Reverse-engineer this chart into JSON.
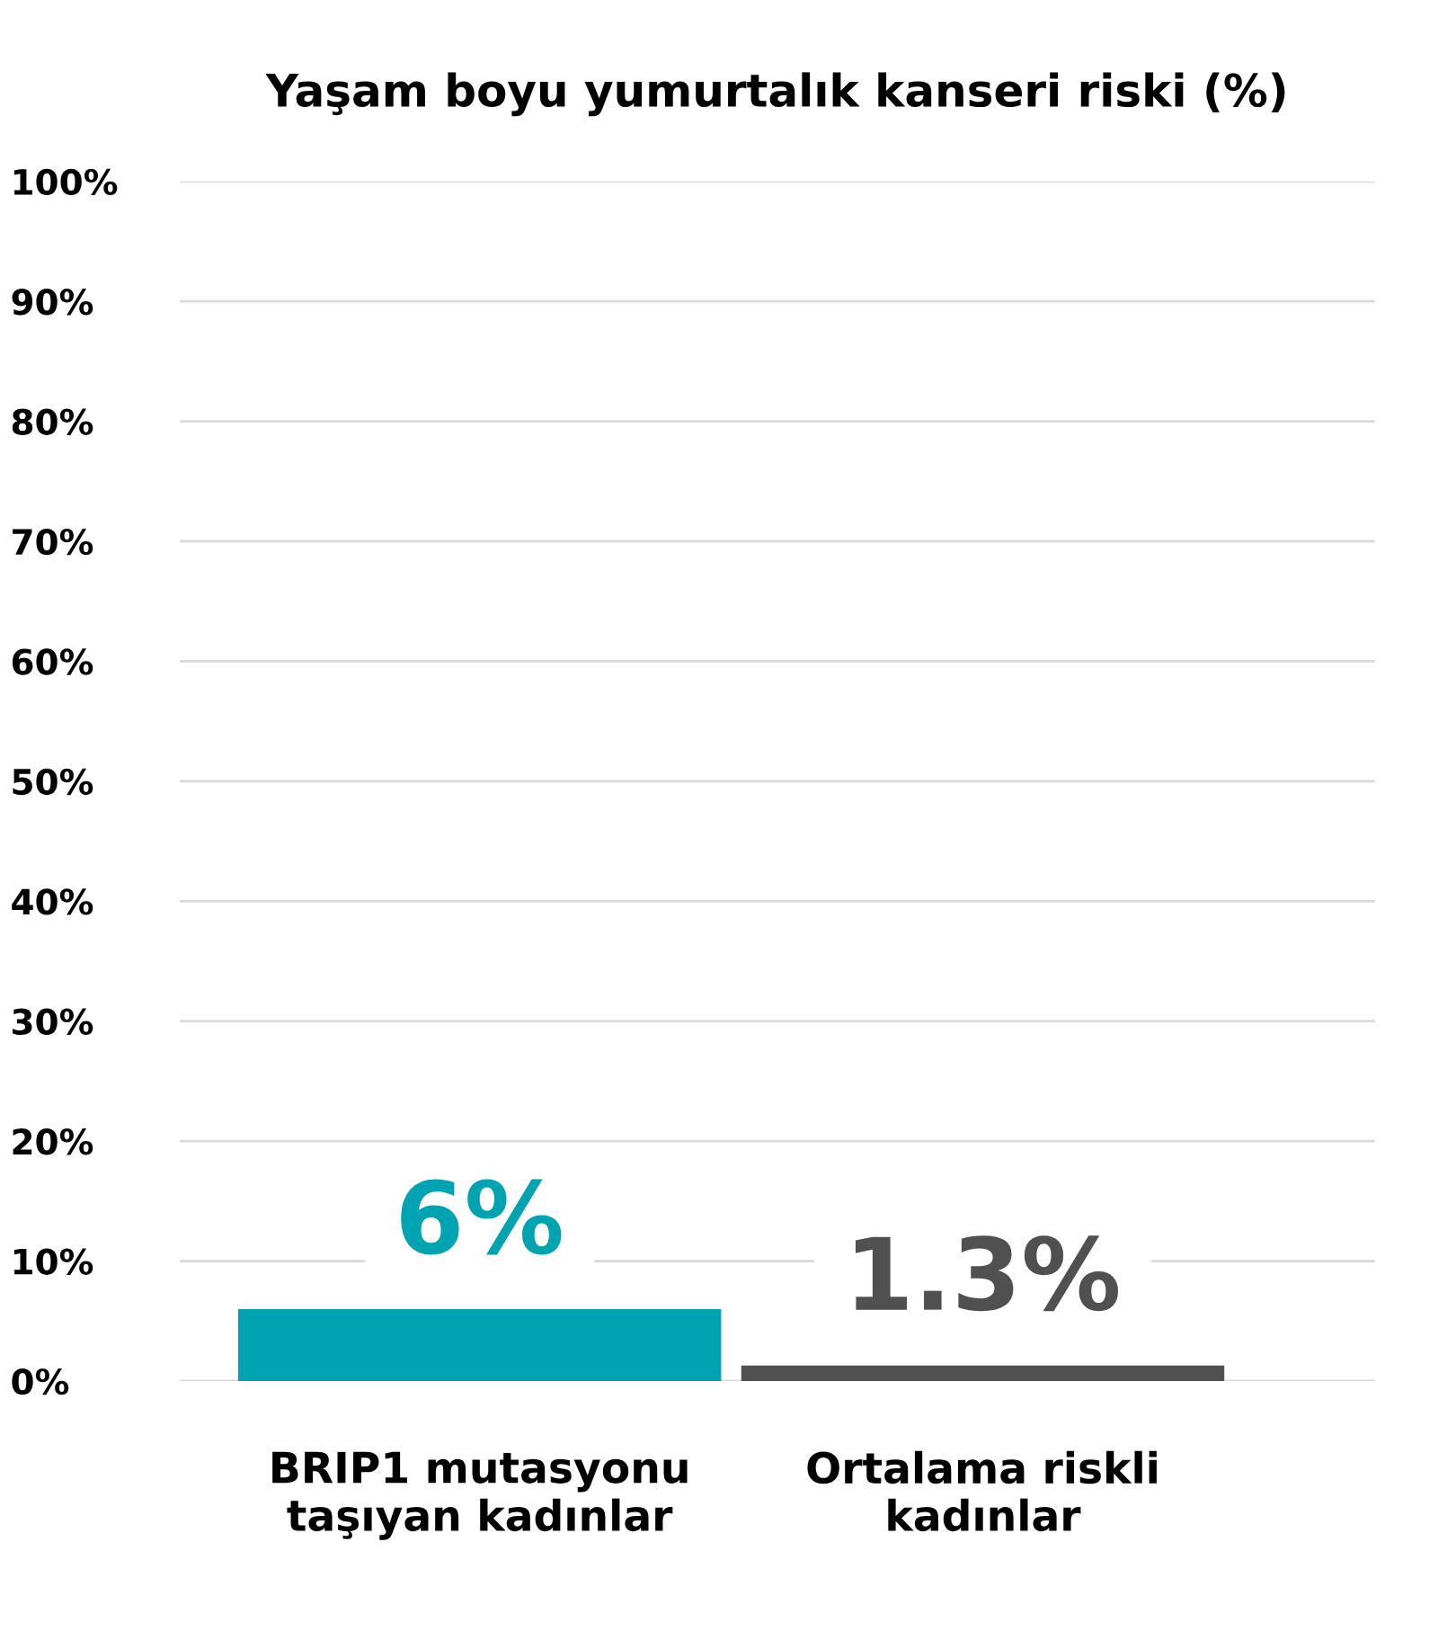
{
  "chart_data": {
    "type": "bar",
    "title": "Yaşam boyu yumurtalık kanseri riski (%)",
    "categories": [
      "BRIP1 mutasyonu\ntaşıyan kadınlar",
      "Ortalama riskli\nkadınlar"
    ],
    "values": [
      6,
      1.3
    ],
    "colors": [
      "#00a3b1",
      "#505050"
    ],
    "value_labels": [
      "6%",
      "1.3%"
    ],
    "ylim": [
      0,
      100
    ],
    "yticks": [
      {
        "value": 0,
        "label": "0%"
      },
      {
        "value": 10,
        "label": "10%"
      },
      {
        "value": 20,
        "label": "20%"
      },
      {
        "value": 30,
        "label": "30%"
      },
      {
        "value": 40,
        "label": "40%"
      },
      {
        "value": 50,
        "label": "50%"
      },
      {
        "value": 60,
        "label": "60%"
      },
      {
        "value": 70,
        "label": "70%"
      },
      {
        "value": 80,
        "label": "80%"
      },
      {
        "value": 90,
        "label": "90%"
      },
      {
        "value": 100,
        "label": "100%"
      }
    ],
    "grid": "y"
  }
}
